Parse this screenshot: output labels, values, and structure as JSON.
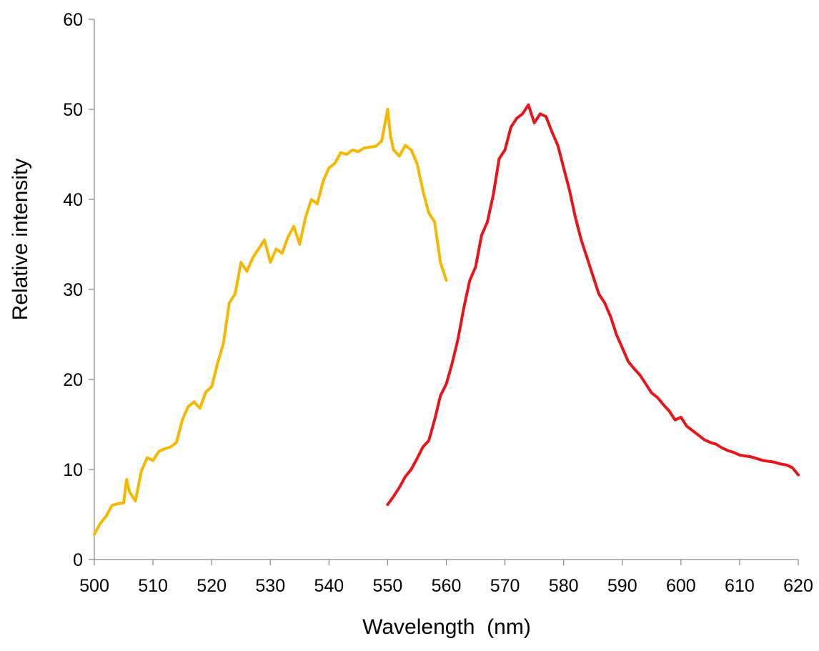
{
  "chart_data": {
    "type": "line",
    "title": "",
    "xlabel": "Wavelength  (nm)",
    "ylabel": "Relative intensity",
    "xlim": [
      500,
      620
    ],
    "ylim": [
      0,
      60
    ],
    "x_ticks": [
      500,
      510,
      520,
      530,
      540,
      550,
      560,
      570,
      580,
      590,
      600,
      610,
      620
    ],
    "y_ticks": [
      0,
      10,
      20,
      30,
      40,
      50,
      60
    ],
    "grid": false,
    "legend": "none",
    "series": [
      {
        "color": "#f4b800",
        "x": [
          500,
          501,
          502,
          503,
          504,
          505,
          505.5,
          506,
          507,
          508,
          509,
          510,
          511,
          512,
          513,
          514,
          515,
          516,
          517,
          518,
          519,
          520,
          521,
          522,
          523,
          524,
          525,
          526,
          527,
          528,
          529,
          530,
          531,
          532,
          533,
          534,
          535,
          536,
          537,
          538,
          539,
          540,
          541,
          542,
          543,
          544,
          545,
          546,
          547,
          548,
          549,
          550,
          550.5,
          551,
          552,
          553,
          554,
          555,
          556,
          557,
          558,
          559,
          560
        ],
        "y": [
          2.8,
          4.0,
          4.8,
          6.0,
          6.2,
          6.3,
          8.9,
          7.5,
          6.5,
          9.8,
          11.3,
          11.0,
          12.0,
          12.3,
          12.5,
          13.0,
          15.5,
          17.0,
          17.5,
          16.8,
          18.6,
          19.2,
          21.8,
          24.0,
          28.5,
          29.5,
          33.0,
          32.0,
          33.5,
          34.5,
          35.5,
          33.0,
          34.5,
          34.0,
          35.8,
          37.0,
          35.0,
          38.0,
          40.0,
          39.5,
          42.0,
          43.5,
          44.0,
          45.2,
          45.0,
          45.5,
          45.3,
          45.7,
          45.8,
          45.9,
          46.5,
          50.0,
          47.0,
          45.5,
          44.8,
          46.0,
          45.5,
          44.0,
          41.0,
          38.5,
          37.5,
          33.0,
          31.0
        ]
      },
      {
        "color": "#e8141c",
        "x": [
          550,
          551,
          552,
          553,
          554,
          555,
          556,
          557,
          558,
          559,
          560,
          561,
          562,
          563,
          564,
          565,
          566,
          567,
          568,
          569,
          570,
          571,
          572,
          573,
          574,
          575,
          576,
          577,
          578,
          579,
          580,
          581,
          582,
          583,
          584,
          585,
          586,
          587,
          588,
          589,
          590,
          591,
          592,
          593,
          594,
          595,
          596,
          597,
          598,
          599,
          600,
          601,
          602,
          603,
          604,
          605,
          606,
          607,
          608,
          609,
          610,
          611,
          612,
          613,
          614,
          615,
          616,
          617,
          618,
          619,
          620
        ],
        "y": [
          6.1,
          7.0,
          8.0,
          9.2,
          10.0,
          11.2,
          12.5,
          13.2,
          15.5,
          18.2,
          19.5,
          21.8,
          24.5,
          28.0,
          31.0,
          32.5,
          36.0,
          37.5,
          40.5,
          44.5,
          45.5,
          48.0,
          49.0,
          49.5,
          50.5,
          48.5,
          49.5,
          49.2,
          47.5,
          46.0,
          43.5,
          41.0,
          38.0,
          35.5,
          33.5,
          31.5,
          29.5,
          28.5,
          27.0,
          25.0,
          23.5,
          22.0,
          21.2,
          20.5,
          19.5,
          18.5,
          18.0,
          17.2,
          16.5,
          15.5,
          15.8,
          14.8,
          14.3,
          13.8,
          13.3,
          13.0,
          12.8,
          12.4,
          12.1,
          11.9,
          11.6,
          11.5,
          11.4,
          11.2,
          11.0,
          10.9,
          10.8,
          10.6,
          10.5,
          10.2,
          9.4
        ]
      }
    ]
  }
}
